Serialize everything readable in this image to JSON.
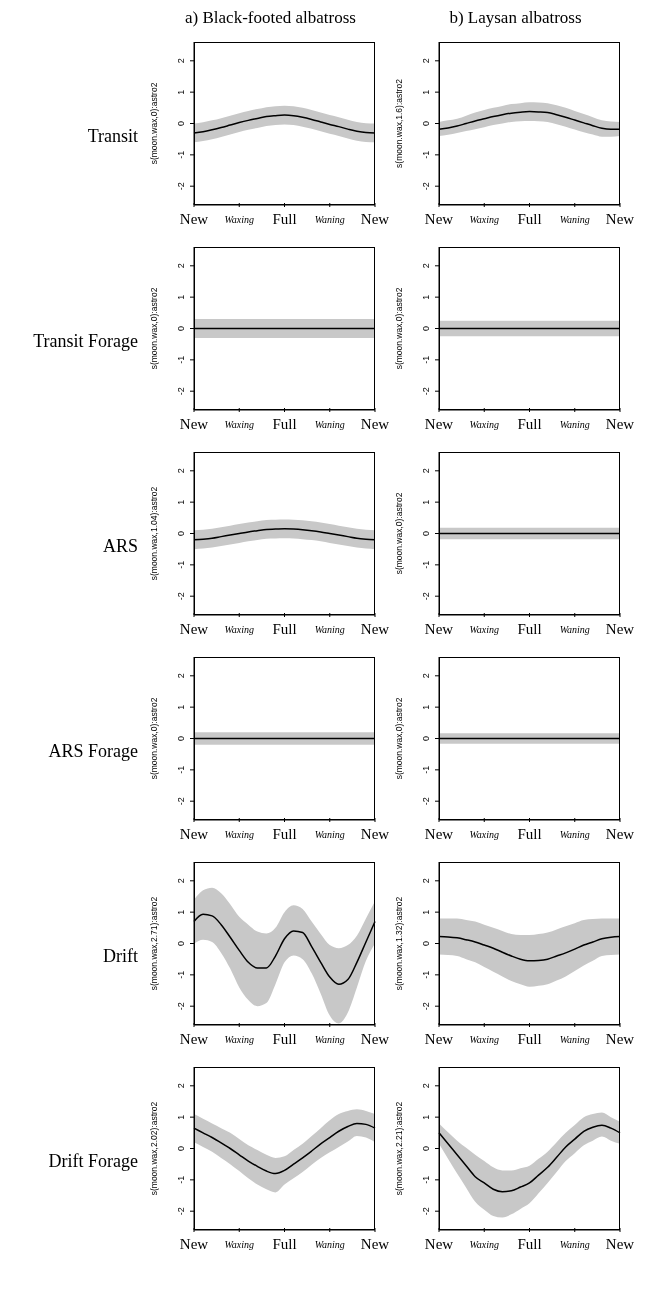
{
  "chart_data": [
    {
      "type": "line",
      "title": "a) Black-footed albatross",
      "annotations": [
        "Transit"
      ],
      "ylabel": "s(moon.wax,0):astro2",
      "categories": [
        "New",
        null,
        null,
        null,
        null,
        "Waxing",
        null,
        null,
        null,
        null,
        "Full",
        null,
        null,
        null,
        null,
        "Waning",
        null,
        null,
        null,
        null,
        "New"
      ],
      "ylim": [
        -2.6,
        2.6
      ],
      "yticks": [
        -2,
        -1,
        0,
        1,
        2
      ],
      "series": [
        {
          "color": "#000000",
          "values": [
            -0.3,
            -0.26,
            -0.2,
            -0.13,
            -0.05,
            0.03,
            0.1,
            0.16,
            0.22,
            0.25,
            0.27,
            0.25,
            0.2,
            0.13,
            0.05,
            -0.03,
            -0.1,
            -0.18,
            -0.25,
            -0.29,
            -0.3
          ],
          "lower": [
            -0.6,
            -0.56,
            -0.5,
            -0.43,
            -0.35,
            -0.27,
            -0.2,
            -0.14,
            -0.08,
            -0.05,
            -0.03,
            -0.05,
            -0.1,
            -0.17,
            -0.25,
            -0.33,
            -0.4,
            -0.48,
            -0.55,
            -0.59,
            -0.6
          ],
          "upper": [
            0,
            0.04,
            0.1,
            0.17,
            0.25,
            0.33,
            0.4,
            0.46,
            0.52,
            0.55,
            0.57,
            0.55,
            0.5,
            0.43,
            0.35,
            0.27,
            0.2,
            0.12,
            0.05,
            0.01,
            0
          ]
        }
      ]
    },
    {
      "type": "line",
      "title": "b) Laysan albatross",
      "ylabel": "s(moon.wax,1.6):astro2",
      "categories": [
        "New",
        null,
        null,
        null,
        null,
        "Waxing",
        null,
        null,
        null,
        null,
        "Full",
        null,
        null,
        null,
        null,
        "Waning",
        null,
        null,
        null,
        null,
        "New"
      ],
      "ylim": [
        -2.6,
        2.6
      ],
      "yticks": [
        -2,
        -1,
        0,
        1,
        2
      ],
      "series": [
        {
          "color": "#000000",
          "values": [
            -0.18,
            -0.14,
            -0.08,
            0,
            0.08,
            0.15,
            0.22,
            0.28,
            0.33,
            0.36,
            0.38,
            0.37,
            0.35,
            0.28,
            0.2,
            0.11,
            0.02,
            -0.07,
            -0.15,
            -0.18,
            -0.18
          ],
          "lower": [
            -0.4,
            -0.36,
            -0.3,
            -0.24,
            -0.18,
            -0.12,
            -0.05,
            0,
            0.05,
            0.07,
            0.08,
            0.07,
            0.05,
            -0.02,
            -0.1,
            -0.19,
            -0.28,
            -0.35,
            -0.42,
            -0.42,
            -0.4
          ],
          "upper": [
            0.05,
            0.1,
            0.15,
            0.25,
            0.35,
            0.43,
            0.5,
            0.56,
            0.62,
            0.65,
            0.68,
            0.67,
            0.65,
            0.58,
            0.5,
            0.4,
            0.3,
            0.2,
            0.1,
            0.06,
            0.05
          ]
        }
      ]
    },
    {
      "type": "line",
      "annotations": [
        "Transit Forage"
      ],
      "ylabel": "s(moon.wax,0):astro2",
      "categories": [
        "New",
        null,
        null,
        null,
        null,
        "Waxing",
        null,
        null,
        null,
        null,
        "Full",
        null,
        null,
        null,
        null,
        "Waning",
        null,
        null,
        null,
        null,
        "New"
      ],
      "ylim": [
        -2.6,
        2.6
      ],
      "yticks": [
        -2,
        -1,
        0,
        1,
        2
      ],
      "series": [
        {
          "color": "#000000",
          "values": [
            0,
            0,
            0,
            0,
            0,
            0,
            0,
            0,
            0,
            0,
            0,
            0,
            0,
            0,
            0,
            0,
            0,
            0,
            0,
            0,
            0
          ],
          "lower": [
            -0.3,
            -0.3,
            -0.3,
            -0.3,
            -0.3,
            -0.3,
            -0.3,
            -0.3,
            -0.3,
            -0.3,
            -0.3,
            -0.3,
            -0.3,
            -0.3,
            -0.3,
            -0.3,
            -0.3,
            -0.3,
            -0.3,
            -0.3,
            -0.3
          ],
          "upper": [
            0.3,
            0.3,
            0.3,
            0.3,
            0.3,
            0.3,
            0.3,
            0.3,
            0.3,
            0.3,
            0.3,
            0.3,
            0.3,
            0.3,
            0.3,
            0.3,
            0.3,
            0.3,
            0.3,
            0.3,
            0.3
          ]
        }
      ]
    },
    {
      "type": "line",
      "ylabel": "s(moon.wax,0):astro2",
      "categories": [
        "New",
        null,
        null,
        null,
        null,
        "Waxing",
        null,
        null,
        null,
        null,
        "Full",
        null,
        null,
        null,
        null,
        "Waning",
        null,
        null,
        null,
        null,
        "New"
      ],
      "ylim": [
        -2.6,
        2.6
      ],
      "yticks": [
        -2,
        -1,
        0,
        1,
        2
      ],
      "series": [
        {
          "color": "#000000",
          "values": [
            0,
            0,
            0,
            0,
            0,
            0,
            0,
            0,
            0,
            0,
            0,
            0,
            0,
            0,
            0,
            0,
            0,
            0,
            0,
            0,
            0
          ],
          "lower": [
            -0.25,
            -0.25,
            -0.25,
            -0.25,
            -0.25,
            -0.25,
            -0.25,
            -0.25,
            -0.25,
            -0.25,
            -0.25,
            -0.25,
            -0.25,
            -0.25,
            -0.25,
            -0.25,
            -0.25,
            -0.25,
            -0.25,
            -0.25,
            -0.25
          ],
          "upper": [
            0.25,
            0.25,
            0.25,
            0.25,
            0.25,
            0.25,
            0.25,
            0.25,
            0.25,
            0.25,
            0.25,
            0.25,
            0.25,
            0.25,
            0.25,
            0.25,
            0.25,
            0.25,
            0.25,
            0.25,
            0.25
          ]
        }
      ]
    },
    {
      "type": "line",
      "annotations": [
        "ARS"
      ],
      "ylabel": "s(moon.wax,1.04):astro2",
      "categories": [
        "New",
        null,
        null,
        null,
        null,
        "Waxing",
        null,
        null,
        null,
        null,
        "Full",
        null,
        null,
        null,
        null,
        "Waning",
        null,
        null,
        null,
        null,
        "New"
      ],
      "ylim": [
        -2.6,
        2.6
      ],
      "yticks": [
        -2,
        -1,
        0,
        1,
        2
      ],
      "series": [
        {
          "color": "#000000",
          "values": [
            -0.2,
            -0.18,
            -0.15,
            -0.1,
            -0.05,
            0,
            0.05,
            0.09,
            0.13,
            0.14,
            0.15,
            0.14,
            0.12,
            0.09,
            0.05,
            0,
            -0.05,
            -0.1,
            -0.15,
            -0.18,
            -0.2
          ],
          "lower": [
            -0.5,
            -0.48,
            -0.45,
            -0.4,
            -0.35,
            -0.3,
            -0.25,
            -0.21,
            -0.17,
            -0.16,
            -0.15,
            -0.16,
            -0.18,
            -0.21,
            -0.25,
            -0.3,
            -0.35,
            -0.4,
            -0.45,
            -0.48,
            -0.5
          ],
          "upper": [
            0.1,
            0.12,
            0.15,
            0.2,
            0.25,
            0.3,
            0.35,
            0.39,
            0.43,
            0.44,
            0.45,
            0.44,
            0.42,
            0.39,
            0.35,
            0.3,
            0.25,
            0.2,
            0.15,
            0.12,
            0.1
          ]
        }
      ]
    },
    {
      "type": "line",
      "ylabel": "s(moon.wax,0):astro2",
      "categories": [
        "New",
        null,
        null,
        null,
        null,
        "Waxing",
        null,
        null,
        null,
        null,
        "Full",
        null,
        null,
        null,
        null,
        "Waning",
        null,
        null,
        null,
        null,
        "New"
      ],
      "ylim": [
        -2.6,
        2.6
      ],
      "yticks": [
        -2,
        -1,
        0,
        1,
        2
      ],
      "series": [
        {
          "color": "#000000",
          "values": [
            0,
            0,
            0,
            0,
            0,
            0,
            0,
            0,
            0,
            0,
            0,
            0,
            0,
            0,
            0,
            0,
            0,
            0,
            0,
            0,
            0
          ],
          "lower": [
            -0.18,
            -0.18,
            -0.18,
            -0.18,
            -0.18,
            -0.18,
            -0.18,
            -0.18,
            -0.18,
            -0.18,
            -0.18,
            -0.18,
            -0.18,
            -0.18,
            -0.18,
            -0.18,
            -0.18,
            -0.18,
            -0.18,
            -0.18,
            -0.18
          ],
          "upper": [
            0.18,
            0.18,
            0.18,
            0.18,
            0.18,
            0.18,
            0.18,
            0.18,
            0.18,
            0.18,
            0.18,
            0.18,
            0.18,
            0.18,
            0.18,
            0.18,
            0.18,
            0.18,
            0.18,
            0.18,
            0.18
          ]
        }
      ]
    },
    {
      "type": "line",
      "annotations": [
        "ARS Forage"
      ],
      "ylabel": "s(moon.wax,0):astro2",
      "categories": [
        "New",
        null,
        null,
        null,
        null,
        "Waxing",
        null,
        null,
        null,
        null,
        "Full",
        null,
        null,
        null,
        null,
        "Waning",
        null,
        null,
        null,
        null,
        "New"
      ],
      "ylim": [
        -2.6,
        2.6
      ],
      "yticks": [
        -2,
        -1,
        0,
        1,
        2
      ],
      "series": [
        {
          "color": "#000000",
          "values": [
            0,
            0,
            0,
            0,
            0,
            0,
            0,
            0,
            0,
            0,
            0,
            0,
            0,
            0,
            0,
            0,
            0,
            0,
            0,
            0,
            0
          ],
          "lower": [
            -0.2,
            -0.2,
            -0.2,
            -0.2,
            -0.2,
            -0.2,
            -0.2,
            -0.2,
            -0.2,
            -0.2,
            -0.2,
            -0.2,
            -0.2,
            -0.2,
            -0.2,
            -0.2,
            -0.2,
            -0.2,
            -0.2,
            -0.2,
            -0.2
          ],
          "upper": [
            0.2,
            0.2,
            0.2,
            0.2,
            0.2,
            0.2,
            0.2,
            0.2,
            0.2,
            0.2,
            0.2,
            0.2,
            0.2,
            0.2,
            0.2,
            0.2,
            0.2,
            0.2,
            0.2,
            0.2,
            0.2
          ]
        }
      ]
    },
    {
      "type": "line",
      "ylabel": "s(moon.wax,0):astro2",
      "categories": [
        "New",
        null,
        null,
        null,
        null,
        "Waxing",
        null,
        null,
        null,
        null,
        "Full",
        null,
        null,
        null,
        null,
        "Waning",
        null,
        null,
        null,
        null,
        "New"
      ],
      "ylim": [
        -2.6,
        2.6
      ],
      "yticks": [
        -2,
        -1,
        0,
        1,
        2
      ],
      "series": [
        {
          "color": "#000000",
          "values": [
            0,
            0,
            0,
            0,
            0,
            0,
            0,
            0,
            0,
            0,
            0,
            0,
            0,
            0,
            0,
            0,
            0,
            0,
            0,
            0,
            0
          ],
          "lower": [
            -0.17,
            -0.17,
            -0.17,
            -0.17,
            -0.17,
            -0.17,
            -0.17,
            -0.17,
            -0.17,
            -0.17,
            -0.17,
            -0.17,
            -0.17,
            -0.17,
            -0.17,
            -0.17,
            -0.17,
            -0.17,
            -0.17,
            -0.17,
            -0.17
          ],
          "upper": [
            0.17,
            0.17,
            0.17,
            0.17,
            0.17,
            0.17,
            0.17,
            0.17,
            0.17,
            0.17,
            0.17,
            0.17,
            0.17,
            0.17,
            0.17,
            0.17,
            0.17,
            0.17,
            0.17,
            0.17,
            0.17
          ]
        }
      ]
    },
    {
      "type": "line",
      "annotations": [
        "Drift"
      ],
      "ylabel": "s(moon.wax,2.71):astro2",
      "categories": [
        "New",
        null,
        null,
        null,
        null,
        "Waxing",
        null,
        null,
        null,
        null,
        "Full",
        null,
        null,
        null,
        null,
        "Waning",
        null,
        null,
        null,
        null,
        "New"
      ],
      "ylim": [
        -2.6,
        2.6
      ],
      "yticks": [
        -2,
        -1,
        0,
        1,
        2
      ],
      "series": [
        {
          "color": "#000000",
          "values": [
            0.7,
            0.93,
            0.88,
            0.6,
            0.2,
            -0.22,
            -0.6,
            -0.78,
            -0.78,
            -0.4,
            0.15,
            0.4,
            0.35,
            -0.1,
            -0.6,
            -1.07,
            -1.3,
            -1.15,
            -0.6,
            0.05,
            0.7
          ],
          "lower": [
            0,
            0.12,
            0.05,
            -0.3,
            -0.8,
            -1.4,
            -1.8,
            -2,
            -1.9,
            -1.3,
            -0.6,
            -0.38,
            -0.5,
            -0.95,
            -1.6,
            -2.3,
            -2.55,
            -2.2,
            -1.4,
            -0.55,
            0
          ],
          "upper": [
            1.4,
            1.7,
            1.78,
            1.6,
            1.25,
            0.85,
            0.6,
            0.38,
            0.32,
            0.5,
            1,
            1.22,
            1.1,
            0.7,
            0.3,
            -0.05,
            -0.15,
            -0.05,
            0.25,
            0.8,
            1.35
          ]
        }
      ]
    },
    {
      "type": "line",
      "ylabel": "s(moon.wax,1.32):astro2",
      "categories": [
        "New",
        null,
        null,
        null,
        null,
        "Waxing",
        null,
        null,
        null,
        null,
        "Full",
        null,
        null,
        null,
        null,
        "Waning",
        null,
        null,
        null,
        null,
        "New"
      ],
      "ylim": [
        -2.6,
        2.6
      ],
      "yticks": [
        -2,
        -1,
        0,
        1,
        2
      ],
      "series": [
        {
          "color": "#000000",
          "values": [
            0.22,
            0.21,
            0.18,
            0.12,
            0.05,
            -0.05,
            -0.15,
            -0.28,
            -0.4,
            -0.5,
            -0.55,
            -0.54,
            -0.5,
            -0.4,
            -0.3,
            -0.18,
            -0.05,
            0.05,
            0.15,
            0.2,
            0.22
          ],
          "lower": [
            -0.35,
            -0.37,
            -0.4,
            -0.5,
            -0.6,
            -0.75,
            -0.9,
            -1.05,
            -1.2,
            -1.3,
            -1.38,
            -1.35,
            -1.3,
            -1.18,
            -1.05,
            -0.88,
            -0.7,
            -0.55,
            -0.4,
            -0.37,
            -0.35
          ],
          "upper": [
            0.8,
            0.8,
            0.8,
            0.75,
            0.7,
            0.6,
            0.5,
            0.4,
            0.3,
            0.27,
            0.27,
            0.3,
            0.35,
            0.45,
            0.55,
            0.65,
            0.75,
            0.78,
            0.8,
            0.8,
            0.8
          ]
        }
      ]
    },
    {
      "type": "line",
      "annotations": [
        "Drift Forage"
      ],
      "ylabel": "s(moon.wax,2.02):astro2",
      "categories": [
        "New",
        null,
        null,
        null,
        null,
        "Waxing",
        null,
        null,
        null,
        null,
        "Full",
        null,
        null,
        null,
        null,
        "Waning",
        null,
        null,
        null,
        null,
        "New"
      ],
      "ylim": [
        -2.6,
        2.6
      ],
      "yticks": [
        -2,
        -1,
        0,
        1,
        2
      ],
      "series": [
        {
          "color": "#000000",
          "values": [
            0.65,
            0.5,
            0.35,
            0.18,
            0,
            -0.2,
            -0.4,
            -0.57,
            -0.72,
            -0.8,
            -0.7,
            -0.5,
            -0.3,
            -0.08,
            0.15,
            0.35,
            0.55,
            0.7,
            0.8,
            0.77,
            0.65
          ],
          "lower": [
            0.2,
            0.05,
            -0.1,
            -0.3,
            -0.5,
            -0.72,
            -0.95,
            -1.15,
            -1.3,
            -1.4,
            -1.15,
            -0.95,
            -0.75,
            -0.52,
            -0.3,
            -0.12,
            0.05,
            0.22,
            0.4,
            0.35,
            0.2
          ],
          "upper": [
            1.1,
            0.95,
            0.8,
            0.65,
            0.5,
            0.3,
            0.1,
            -0.05,
            -0.2,
            -0.3,
            -0.25,
            -0.05,
            0.15,
            0.4,
            0.65,
            0.9,
            1.1,
            1.2,
            1.25,
            1.2,
            1.1
          ]
        }
      ]
    },
    {
      "type": "line",
      "ylabel": "s(moon.wax,2.21):astro2",
      "categories": [
        "New",
        null,
        null,
        null,
        null,
        "Waxing",
        null,
        null,
        null,
        null,
        "Full",
        null,
        null,
        null,
        null,
        "Waning",
        null,
        null,
        null,
        null,
        "New"
      ],
      "ylim": [
        -2.6,
        2.6
      ],
      "yticks": [
        -2,
        -1,
        0,
        1,
        2
      ],
      "series": [
        {
          "color": "#000000",
          "values": [
            0.5,
            0.15,
            -0.2,
            -0.55,
            -0.9,
            -1.1,
            -1.3,
            -1.38,
            -1.35,
            -1.23,
            -1.1,
            -0.85,
            -0.6,
            -0.28,
            0.05,
            0.3,
            0.55,
            0.68,
            0.74,
            0.65,
            0.5
          ],
          "lower": [
            0.15,
            -0.33,
            -0.8,
            -1.25,
            -1.7,
            -1.95,
            -2.15,
            -2.2,
            -2.1,
            -1.93,
            -1.75,
            -1.43,
            -1.1,
            -0.75,
            -0.4,
            -0.15,
            0.1,
            0.25,
            0.38,
            0.25,
            0.15
          ],
          "upper": [
            0.8,
            0.52,
            0.25,
            0.02,
            -0.2,
            -0.4,
            -0.6,
            -0.7,
            -0.7,
            -0.63,
            -0.55,
            -0.33,
            -0.1,
            0.2,
            0.5,
            0.75,
            1,
            1.1,
            1.15,
            1,
            0.85
          ]
        }
      ]
    }
  ]
}
